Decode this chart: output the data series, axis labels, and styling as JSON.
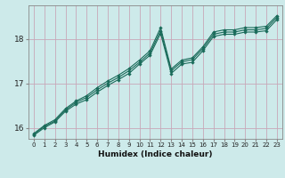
{
  "xlabel": "Humidex (Indice chaleur)",
  "xlim": [
    -0.5,
    23.5
  ],
  "ylim": [
    15.75,
    18.75
  ],
  "yticks": [
    16,
    17,
    18
  ],
  "xticks": [
    0,
    1,
    2,
    3,
    4,
    5,
    6,
    7,
    8,
    9,
    10,
    11,
    12,
    13,
    14,
    15,
    16,
    17,
    18,
    19,
    20,
    21,
    22,
    23
  ],
  "bg_color": "#cdeaea",
  "grid_color": "#c8a8b8",
  "line_color": "#1a6b5a",
  "lines": [
    [
      15.87,
      16.05,
      16.18,
      16.43,
      16.6,
      16.72,
      16.9,
      17.05,
      17.18,
      17.33,
      17.52,
      17.73,
      18.25,
      17.32,
      17.52,
      17.57,
      17.82,
      18.15,
      18.2,
      18.2,
      18.25,
      18.25,
      18.28,
      18.52
    ],
    [
      15.85,
      16.03,
      16.15,
      16.4,
      16.57,
      16.68,
      16.85,
      17.0,
      17.13,
      17.28,
      17.47,
      17.68,
      18.18,
      17.28,
      17.48,
      17.53,
      17.78,
      18.1,
      18.15,
      18.15,
      18.2,
      18.2,
      18.23,
      18.48
    ],
    [
      15.83,
      16.0,
      16.13,
      16.37,
      16.53,
      16.63,
      16.8,
      16.95,
      17.08,
      17.22,
      17.43,
      17.63,
      18.12,
      17.22,
      17.43,
      17.47,
      17.73,
      18.05,
      18.1,
      18.1,
      18.15,
      18.15,
      18.18,
      18.43
    ]
  ]
}
